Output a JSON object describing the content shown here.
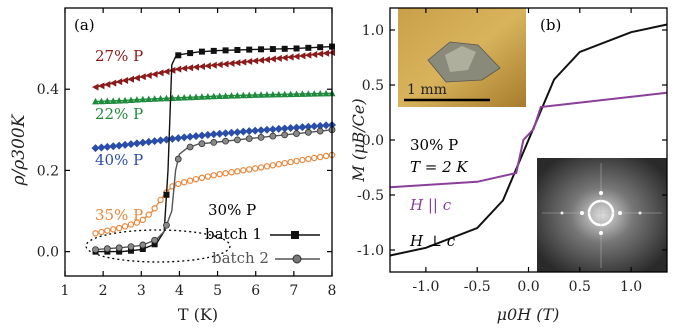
{
  "chart_data": [
    {
      "type": "line",
      "panel_label": "(a)",
      "xlabel": "T (K)",
      "ylabel": "ρ/ρ300K",
      "xlim": [
        1,
        8
      ],
      "ylim": [
        -0.06,
        0.6
      ],
      "x_ticks": [
        "1",
        "2",
        "3",
        "4",
        "5",
        "6",
        "7",
        "8"
      ],
      "y_ticks": [
        "0.0",
        "0.2",
        "0.4"
      ],
      "y_tick_values": [
        0.0,
        0.2,
        0.4
      ],
      "legend": {
        "title": "30% P",
        "placement": "bottom-right"
      },
      "series": [
        {
          "name": "27% P",
          "color": "#8b1a1a",
          "x": [
            1.8,
            2.5,
            3.0,
            3.5,
            4.0,
            4.5,
            5.0,
            6.0,
            7.0,
            8.0
          ],
          "y": [
            0.405,
            0.42,
            0.43,
            0.44,
            0.45,
            0.455,
            0.46,
            0.47,
            0.48,
            0.49
          ]
        },
        {
          "name": "22% P",
          "color": "#1e8a3c",
          "x": [
            1.8,
            2.5,
            3.0,
            3.5,
            4.0,
            4.5,
            5.0,
            6.0,
            7.0,
            8.0
          ],
          "y": [
            0.37,
            0.372,
            0.375,
            0.377,
            0.379,
            0.381,
            0.383,
            0.386,
            0.388,
            0.39
          ]
        },
        {
          "name": "40% P",
          "color": "#2a4ea8",
          "x": [
            1.8,
            2.5,
            3.0,
            3.5,
            4.0,
            4.5,
            5.0,
            6.0,
            7.0,
            8.0
          ],
          "y": [
            0.255,
            0.262,
            0.268,
            0.274,
            0.28,
            0.285,
            0.29,
            0.298,
            0.305,
            0.312
          ]
        },
        {
          "name": "35% P",
          "color": "#e9873a",
          "x": [
            1.8,
            2.5,
            3.0,
            3.3,
            3.6,
            3.8,
            4.0,
            4.5,
            5.0,
            6.0,
            7.0,
            8.0
          ],
          "y": [
            0.045,
            0.06,
            0.075,
            0.1,
            0.14,
            0.16,
            0.168,
            0.18,
            0.19,
            0.205,
            0.222,
            0.238
          ]
        },
        {
          "name": "batch 1",
          "color": "#111111",
          "x": [
            1.8,
            2.5,
            3.0,
            3.4,
            3.6,
            3.7,
            3.8,
            3.9,
            4.0,
            4.5,
            5.0,
            6.0,
            7.0,
            8.0
          ],
          "y": [
            0.0,
            0.0,
            0.005,
            0.02,
            0.05,
            0.2,
            0.46,
            0.48,
            0.485,
            0.492,
            0.495,
            0.498,
            0.5,
            0.505
          ]
        },
        {
          "name": "batch 2",
          "color": "#555555",
          "x": [
            1.8,
            2.5,
            3.0,
            3.4,
            3.6,
            3.8,
            3.9,
            4.0,
            4.2,
            4.5,
            5.0,
            6.0,
            7.0,
            8.0
          ],
          "y": [
            0.005,
            0.01,
            0.015,
            0.03,
            0.05,
            0.1,
            0.2,
            0.24,
            0.255,
            0.265,
            0.27,
            0.28,
            0.29,
            0.3
          ]
        }
      ]
    },
    {
      "type": "line",
      "panel_label": "(b)",
      "xlabel": "μ0H (T)",
      "ylabel": "M (μB/Ce)",
      "xlim": [
        -1.35,
        1.35
      ],
      "ylim": [
        -1.2,
        1.2
      ],
      "x_ticks": [
        "-1.0",
        "-0.5",
        "0.0",
        "0.5",
        "1.0"
      ],
      "x_tick_values": [
        -1.0,
        -0.5,
        0.0,
        0.5,
        1.0
      ],
      "y_ticks": [
        "1.0",
        "0.5",
        "0.0",
        "-0.5",
        "-1.0"
      ],
      "y_tick_values": [
        1.0,
        0.5,
        0.0,
        -0.5,
        -1.0
      ],
      "annotations": {
        "line1": "30% P",
        "line2": "T = 2 K",
        "line3": "H || c",
        "line4": "H ⊥ c"
      },
      "inset_scale_label": "1 mm",
      "series": [
        {
          "name": "H ⊥ c",
          "color": "#111111",
          "x": [
            -1.35,
            -1.0,
            -0.5,
            -0.25,
            0.0,
            0.25,
            0.5,
            1.0,
            1.35
          ],
          "y": [
            -1.05,
            -0.98,
            -0.8,
            -0.55,
            0.0,
            0.55,
            0.8,
            0.98,
            1.05
          ]
        },
        {
          "name": "H || c",
          "color": "#8a3f9a",
          "x": [
            -1.35,
            -0.5,
            -0.12,
            -0.05,
            0.05,
            0.12,
            0.5,
            1.35
          ],
          "y": [
            -0.43,
            -0.38,
            -0.3,
            0.0,
            0.1,
            0.3,
            0.34,
            0.43
          ]
        }
      ]
    }
  ]
}
